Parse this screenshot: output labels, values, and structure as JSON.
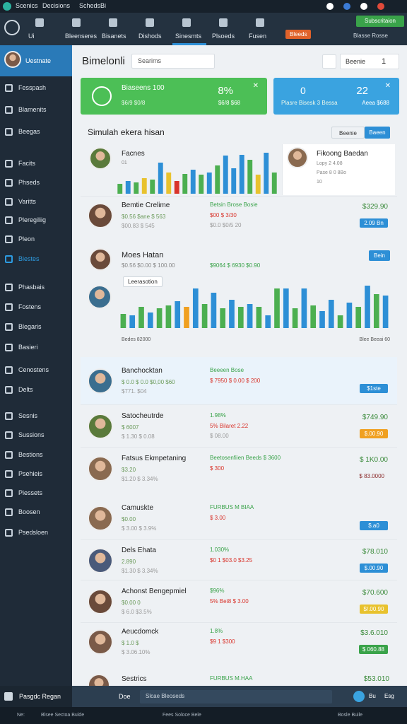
{
  "top_bar": {
    "items": [
      "Scenics",
      "Decisions",
      "Scheds",
      "Bi"
    ]
  },
  "nav": {
    "items": [
      "Ui",
      "Bleenseres",
      "Bisanets",
      "Dishods",
      "Sinesmts",
      "Plsoeds",
      "Fusen"
    ],
    "badge": "Bleeds",
    "button": "Subscritaion",
    "note": "Blasse Rosse"
  },
  "sidebar": {
    "user": "Uestnate",
    "items": [
      "Fesspash",
      "Blamenits",
      "Beegas",
      "Facits",
      "Phseds",
      "Varitts",
      "Pleregiliig",
      "Pleon",
      "Biestes",
      "Phasbais",
      "Fostens",
      "Blegaris",
      "Basieri",
      "Cenostens",
      "Delts",
      "Sesnis",
      "Sussions",
      "Bestions",
      "Psehieis",
      "Piessets",
      "Boosen",
      "Psedsloen"
    ],
    "footer": "Pasgdc Regan"
  },
  "header": {
    "title": "Bimelonli",
    "search": "Searims",
    "select": "Beenie",
    "select_value": "1"
  },
  "stats": [
    {
      "title": "Biaseens 100",
      "sub": "$6/9 $0/8",
      "value": "8%",
      "value_sub": "$6/8 $68"
    },
    {
      "title": "0",
      "sub": "Plasre Bisesk 3 Bessa",
      "value": "22",
      "value_sub": "Aeea $688"
    }
  ],
  "panel1": {
    "title": "Simulah ekera hisan",
    "buttons": [
      "Beenie",
      "Baeen"
    ],
    "chart": {
      "label": "Facnes",
      "sub": "01",
      "values": [
        14,
        18,
        16,
        22,
        20,
        44,
        30,
        18,
        28,
        34,
        27,
        30,
        40,
        54,
        36,
        55,
        48,
        27,
        58,
        30
      ],
      "colors": [
        "#4caf50",
        "#2d8fd6",
        "#4caf50",
        "#e8c22e",
        "#4caf50",
        "#2d8fd6",
        "#e8c22e",
        "#d9342b",
        "#4caf50",
        "#2d8fd6",
        "#4caf50",
        "#2d8fd6",
        "#4caf50",
        "#2d8fd6",
        "#2d8fd6",
        "#2d8fd6",
        "#4caf50",
        "#e8c22e",
        "#2d8fd6",
        "#4caf50"
      ]
    },
    "popup": {
      "name": "Fikoong Baedan",
      "lines": [
        "Lopy 2 4.08",
        "Pase 8 0 8Bo",
        "10"
      ]
    },
    "row": {
      "name": "Bemtie Crelime",
      "sub1": "$0.56 $ane $ 563",
      "sub2": "$00.83 $ 545",
      "mid1": "Betsin Brose Bosie",
      "mid2": "$00 $ 3/30",
      "mid3": "$0.0 $0/5 20",
      "price": "$329.90",
      "badge": "2.09 Bn",
      "badge_color": "#2d8fd6"
    }
  },
  "panel2": {
    "name": "Moes Hatan",
    "sub": "$0.56 $0.00 $ 100.00",
    "mid": "$9064 $ 6930 $0.90",
    "button": "Bein",
    "tag": "Leerasotion",
    "chart": {
      "values": [
        20,
        18,
        30,
        22,
        28,
        32,
        38,
        30,
        56,
        34,
        50,
        28,
        40,
        30,
        34,
        30,
        18,
        56,
        56,
        28,
        56,
        32,
        24,
        40,
        18,
        36,
        30,
        60,
        48,
        46
      ],
      "colors": [
        "#4caf50",
        "#2d8fd6",
        "#4caf50",
        "#2d8fd6",
        "#4caf50",
        "#4caf50",
        "#2d8fd6",
        "#f0a020",
        "#2d8fd6",
        "#4caf50",
        "#2d8fd6",
        "#4caf50",
        "#2d8fd6",
        "#4caf50",
        "#2d8fd6",
        "#4caf50",
        "#2d8fd6",
        "#4caf50",
        "#2d8fd6",
        "#4caf50",
        "#2d8fd6",
        "#4caf50",
        "#2d8fd6",
        "#2d8fd6",
        "#4caf50",
        "#2d8fd6",
        "#4caf50",
        "#2d8fd6",
        "#4caf50",
        "#2d8fd6"
      ]
    },
    "foot_left": "Bedes 82000",
    "foot_right": "Blee Beeai 60"
  },
  "panel3": {
    "rows": [
      {
        "name": "Banchocktan",
        "sub1": "$ 0.0 $ 0.0 $0,00 $60",
        "sub2": "$771. $04",
        "mid1": "Beeeen Bose",
        "mid2": "$ 7950 $ 0.00 $ 200",
        "price": "",
        "badge": "$1ste",
        "badge_color": "#2d8fd6"
      },
      {
        "name": "Satocheutrde",
        "sub1": "$ 6007",
        "sub2": "$ 1.30 $ 0.08",
        "mid1": "1.98%",
        "mid2": "5% Bilaret 2.22",
        "mid3": "$ 08.00",
        "price": "$749.90",
        "badge": "$.00.90",
        "badge_color": "#f0a020"
      },
      {
        "name": "Fatsus Ekmpetaning",
        "sub1": "$3.20",
        "sub2": "$1.20 $ 3.34%",
        "mid1": "Beetosenfiien Beeds $ 3600",
        "mid2": "$ 300",
        "price": "$ 1K0.00",
        "badge": "$ 83.0000",
        "badge_color": ""
      }
    ]
  },
  "panel4": {
    "rows": [
      {
        "name": "Camuskte",
        "sub1": "$0.00",
        "sub2": "$ 3.00 $ 3.9%",
        "mid1": "FURBUS M BIAA",
        "mid2": "$ 3.00",
        "price": "",
        "badge": "$.a0",
        "badge_color": "#2d8fd6"
      },
      {
        "name": "Dels Ehata",
        "sub1": "2.890",
        "sub2": "$1.30 $ 3.34%",
        "mid1": "1.030%",
        "mid2": "$0 1 $03.0 $3.25",
        "price": "$78.010",
        "badge": "$.00.90",
        "badge_color": "#2d8fd6"
      },
      {
        "name": "Achonst Bengepmiel",
        "sub1": "$0.00 0",
        "sub2": "$ 6.0 $3.5%",
        "mid1": "$96%",
        "mid2": "5% Bet8 $ 3.00",
        "price": "$70.600",
        "badge": "$/.00.90",
        "badge_color": "#e8c22e"
      },
      {
        "name": "Aeucdomck",
        "sub1": "$ 1.0 $",
        "sub2": "$ 3.06.10%",
        "mid1": "1.8%",
        "mid2": "$9 1 $300",
        "price": "$3.6.010",
        "badge": "$ 060.88",
        "badge_color": "#3aa34a"
      }
    ]
  },
  "panel5": {
    "name": "Sestrics",
    "mid": "FURBUS M.HAA",
    "price": "$53.010"
  },
  "bottom_bar": {
    "back": "Doe",
    "input": "Slcae Bleoseds",
    "right": [
      "Bu",
      "Esg"
    ]
  },
  "footer": {
    "items": [
      "Ne:",
      "Blsee Sectoa Bulde",
      "Fees Soloce Bele",
      "Bosle Buile"
    ]
  }
}
